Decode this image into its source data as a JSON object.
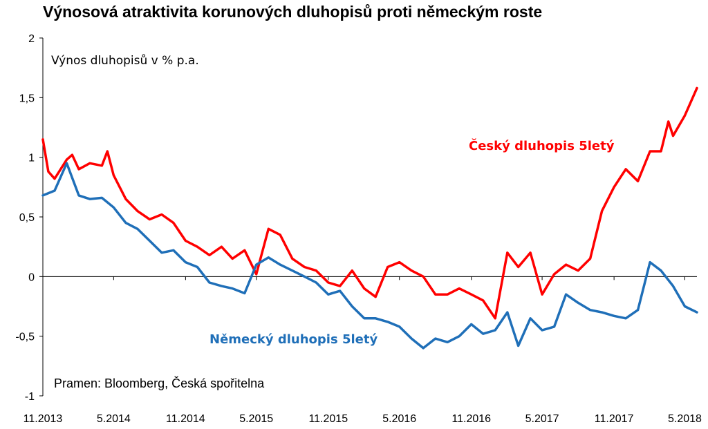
{
  "chart_data": {
    "type": "line",
    "title": "Výnosová atraktivita korunových dluhopisů proti německým roste",
    "ylabel": "Výnos dluhopisů v % p.a.",
    "source": "Pramen: Bloomberg, Česká spořitelna",
    "ylim": [
      -1,
      2
    ],
    "y_ticks": [
      "2",
      "1,5",
      "1",
      "0,5",
      "0",
      "-0,5",
      "-1"
    ],
    "x_tick_labels": [
      "11.2013",
      "5.2014",
      "11.2014",
      "5.2015",
      "11.2015",
      "5.2016",
      "11.2016",
      "5.2017",
      "11.2017",
      "5.2018"
    ],
    "x_start": "2013-11",
    "x_end": "2018-06",
    "grid": false,
    "series": [
      {
        "name": "Český dluhopis 5letý",
        "color": "#ff0000",
        "points": [
          [
            "2013-11",
            1.15
          ],
          [
            "2013-11-15",
            0.88
          ],
          [
            "2013-12",
            0.82
          ],
          [
            "2014-01",
            0.98
          ],
          [
            "2014-01-15",
            1.02
          ],
          [
            "2014-02",
            0.9
          ],
          [
            "2014-03",
            0.95
          ],
          [
            "2014-04",
            0.93
          ],
          [
            "2014-04-15",
            1.05
          ],
          [
            "2014-05",
            0.85
          ],
          [
            "2014-06",
            0.65
          ],
          [
            "2014-07",
            0.55
          ],
          [
            "2014-08",
            0.48
          ],
          [
            "2014-09",
            0.52
          ],
          [
            "2014-10",
            0.45
          ],
          [
            "2014-11",
            0.3
          ],
          [
            "2014-12",
            0.25
          ],
          [
            "2015-01",
            0.18
          ],
          [
            "2015-02",
            0.25
          ],
          [
            "2015-03",
            0.15
          ],
          [
            "2015-04",
            0.22
          ],
          [
            "2015-05",
            0.02
          ],
          [
            "2015-06",
            0.4
          ],
          [
            "2015-07",
            0.35
          ],
          [
            "2015-08",
            0.15
          ],
          [
            "2015-09",
            0.08
          ],
          [
            "2015-10",
            0.05
          ],
          [
            "2015-11",
            -0.05
          ],
          [
            "2015-12",
            -0.08
          ],
          [
            "2016-01",
            0.05
          ],
          [
            "2016-02",
            -0.1
          ],
          [
            "2016-03",
            -0.17
          ],
          [
            "2016-04",
            0.08
          ],
          [
            "2016-05",
            0.12
          ],
          [
            "2016-06",
            0.05
          ],
          [
            "2016-07",
            0.0
          ],
          [
            "2016-08",
            -0.15
          ],
          [
            "2016-09",
            -0.15
          ],
          [
            "2016-10",
            -0.1
          ],
          [
            "2016-11",
            -0.15
          ],
          [
            "2016-12",
            -0.2
          ],
          [
            "2017-01",
            -0.35
          ],
          [
            "2017-02",
            0.2
          ],
          [
            "2017-03",
            0.08
          ],
          [
            "2017-04",
            0.2
          ],
          [
            "2017-05",
            -0.15
          ],
          [
            "2017-06",
            0.02
          ],
          [
            "2017-07",
            0.1
          ],
          [
            "2017-08",
            0.05
          ],
          [
            "2017-09",
            0.15
          ],
          [
            "2017-10",
            0.55
          ],
          [
            "2017-11",
            0.75
          ],
          [
            "2017-12",
            0.9
          ],
          [
            "2018-01",
            0.8
          ],
          [
            "2018-02",
            1.05
          ],
          [
            "2018-03",
            1.05
          ],
          [
            "2018-03-20",
            1.3
          ],
          [
            "2018-04",
            1.18
          ],
          [
            "2018-05",
            1.35
          ],
          [
            "2018-06",
            1.58
          ]
        ]
      },
      {
        "name": "Německý dluhopis 5letý",
        "color": "#1f6fb8",
        "points": [
          [
            "2013-11",
            0.68
          ],
          [
            "2013-12",
            0.72
          ],
          [
            "2014-01",
            0.95
          ],
          [
            "2014-02",
            0.68
          ],
          [
            "2014-03",
            0.65
          ],
          [
            "2014-04",
            0.66
          ],
          [
            "2014-05",
            0.58
          ],
          [
            "2014-06",
            0.45
          ],
          [
            "2014-07",
            0.4
          ],
          [
            "2014-08",
            0.3
          ],
          [
            "2014-09",
            0.2
          ],
          [
            "2014-10",
            0.22
          ],
          [
            "2014-11",
            0.12
          ],
          [
            "2014-12",
            0.08
          ],
          [
            "2015-01",
            -0.05
          ],
          [
            "2015-02",
            -0.08
          ],
          [
            "2015-03",
            -0.1
          ],
          [
            "2015-04",
            -0.14
          ],
          [
            "2015-05",
            0.1
          ],
          [
            "2015-06",
            0.16
          ],
          [
            "2015-07",
            0.1
          ],
          [
            "2015-08",
            0.05
          ],
          [
            "2015-09",
            0.0
          ],
          [
            "2015-10",
            -0.05
          ],
          [
            "2015-11",
            -0.15
          ],
          [
            "2015-12",
            -0.12
          ],
          [
            "2016-01",
            -0.25
          ],
          [
            "2016-02",
            -0.35
          ],
          [
            "2016-03",
            -0.35
          ],
          [
            "2016-04",
            -0.38
          ],
          [
            "2016-05",
            -0.42
          ],
          [
            "2016-06",
            -0.52
          ],
          [
            "2016-07",
            -0.6
          ],
          [
            "2016-08",
            -0.52
          ],
          [
            "2016-09",
            -0.55
          ],
          [
            "2016-10",
            -0.5
          ],
          [
            "2016-11",
            -0.4
          ],
          [
            "2016-12",
            -0.48
          ],
          [
            "2017-01",
            -0.45
          ],
          [
            "2017-02",
            -0.3
          ],
          [
            "2017-03",
            -0.58
          ],
          [
            "2017-04",
            -0.35
          ],
          [
            "2017-05",
            -0.45
          ],
          [
            "2017-06",
            -0.42
          ],
          [
            "2017-07",
            -0.15
          ],
          [
            "2017-08",
            -0.22
          ],
          [
            "2017-09",
            -0.28
          ],
          [
            "2017-10",
            -0.3
          ],
          [
            "2017-11",
            -0.33
          ],
          [
            "2017-12",
            -0.35
          ],
          [
            "2018-01",
            -0.28
          ],
          [
            "2018-02",
            0.12
          ],
          [
            "2018-03",
            0.05
          ],
          [
            "2018-04",
            -0.08
          ],
          [
            "2018-05",
            -0.25
          ],
          [
            "2018-06",
            -0.3
          ]
        ]
      }
    ]
  }
}
